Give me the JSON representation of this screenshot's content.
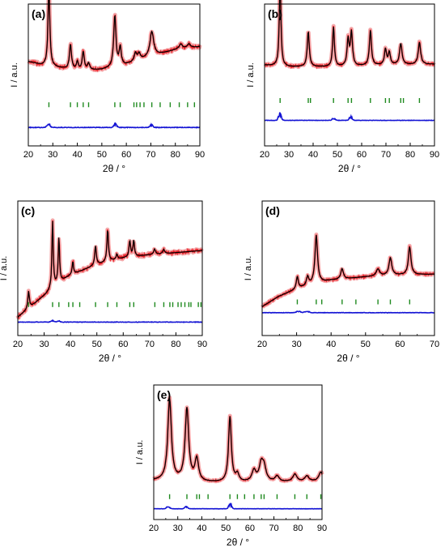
{
  "colors": {
    "observed": "#e8222a",
    "observed_band": "#f4a6a8",
    "calculated": "#000000",
    "difference": "#1414d4",
    "reflections": "#1f8a1f"
  },
  "chart_data": [
    {
      "panel_label": "(a)",
      "type": "line",
      "xlabel": "2θ / °",
      "ylabel": "I / a.u.",
      "xlim": [
        20,
        90
      ],
      "xticks": [
        "20",
        "30",
        "40",
        "50",
        "60",
        "70",
        "80",
        "90"
      ],
      "baseline": {
        "x": [
          20,
          26,
          40,
          50,
          60,
          70,
          80,
          90
        ],
        "y": [
          0.44,
          0.39,
          0.33,
          0.34,
          0.4,
          0.5,
          0.58,
          0.62
        ]
      },
      "peaks": [
        {
          "x": 28.4,
          "h": 0.95,
          "w": 0.45
        },
        {
          "x": 37.2,
          "h": 0.3,
          "w": 0.5
        },
        {
          "x": 40.0,
          "h": 0.1,
          "w": 0.5
        },
        {
          "x": 42.4,
          "h": 0.22,
          "w": 0.5
        },
        {
          "x": 44.6,
          "h": 0.08,
          "w": 0.5
        },
        {
          "x": 55.3,
          "h": 0.62,
          "w": 0.55
        },
        {
          "x": 57.5,
          "h": 0.22,
          "w": 0.5
        },
        {
          "x": 63.7,
          "h": 0.1,
          "w": 0.6
        },
        {
          "x": 65.2,
          "h": 0.08,
          "w": 0.6
        },
        {
          "x": 70.4,
          "h": 0.3,
          "w": 0.9
        },
        {
          "x": 82.2,
          "h": 0.06,
          "w": 0.8
        },
        {
          "x": 85.5,
          "h": 0.05,
          "w": 0.8
        }
      ],
      "reflections": [
        28.4,
        37.2,
        40.0,
        42.4,
        44.6,
        55.3,
        57.5,
        63.1,
        64.2,
        65.6,
        67.2,
        70.4,
        73.8,
        77.9,
        81.6,
        85.0,
        87.8
      ],
      "noise": 0.018,
      "diff_features": [
        {
          "x": 28.2,
          "h": 0.3
        },
        {
          "x": 55.5,
          "h": 0.25
        },
        {
          "x": 70.2,
          "h": 0.18
        }
      ]
    },
    {
      "panel_label": "(b)",
      "type": "line",
      "xlabel": "2θ / °",
      "ylabel": "I / a.u.",
      "xlim": [
        20,
        90
      ],
      "xticks": [
        "20",
        "30",
        "40",
        "50",
        "60",
        "70",
        "80",
        "90"
      ],
      "baseline": {
        "x": [
          20,
          30,
          50,
          70,
          90
        ],
        "y": [
          0.37,
          0.35,
          0.35,
          0.37,
          0.38
        ]
      },
      "peaks": [
        {
          "x": 26.4,
          "h": 1.0,
          "w": 0.4
        },
        {
          "x": 38.0,
          "h": 0.4,
          "w": 0.5
        },
        {
          "x": 48.4,
          "h": 0.45,
          "w": 0.45
        },
        {
          "x": 54.4,
          "h": 0.3,
          "w": 0.5
        },
        {
          "x": 55.8,
          "h": 0.38,
          "w": 0.5
        },
        {
          "x": 63.6,
          "h": 0.4,
          "w": 0.5
        },
        {
          "x": 69.8,
          "h": 0.18,
          "w": 0.5
        },
        {
          "x": 71.4,
          "h": 0.14,
          "w": 0.5
        },
        {
          "x": 76.1,
          "h": 0.24,
          "w": 0.6
        },
        {
          "x": 83.8,
          "h": 0.25,
          "w": 0.6
        }
      ],
      "reflections": [
        26.4,
        38.0,
        38.9,
        48.4,
        54.4,
        55.8,
        63.6,
        69.8,
        71.4,
        76.1,
        77.2,
        83.8
      ],
      "noise": 0.012,
      "diff_features": [
        {
          "x": 26.3,
          "h": 0.45
        },
        {
          "x": 48.5,
          "h": 0.15
        },
        {
          "x": 55.5,
          "h": 0.25
        }
      ]
    },
    {
      "panel_label": "(c)",
      "type": "line",
      "xlabel": "2θ / °",
      "ylabel": "I / a.u.",
      "xlim": [
        20,
        90
      ],
      "xticks": [
        "20",
        "30",
        "40",
        "50",
        "60",
        "70",
        "80",
        "90"
      ],
      "baseline": {
        "x": [
          20,
          25,
          30,
          35,
          40,
          50,
          60,
          70,
          80,
          90
        ],
        "y": [
          0.02,
          0.12,
          0.22,
          0.33,
          0.41,
          0.51,
          0.57,
          0.6,
          0.62,
          0.64
        ]
      },
      "peaks": [
        {
          "x": 24.1,
          "h": 0.16,
          "w": 0.35
        },
        {
          "x": 33.2,
          "h": 0.62,
          "w": 0.3
        },
        {
          "x": 35.6,
          "h": 0.42,
          "w": 0.3
        },
        {
          "x": 40.9,
          "h": 0.12,
          "w": 0.3
        },
        {
          "x": 49.5,
          "h": 0.18,
          "w": 0.35
        },
        {
          "x": 54.1,
          "h": 0.3,
          "w": 0.35
        },
        {
          "x": 57.6,
          "h": 0.05,
          "w": 0.35
        },
        {
          "x": 62.5,
          "h": 0.15,
          "w": 0.35
        },
        {
          "x": 64.0,
          "h": 0.15,
          "w": 0.35
        },
        {
          "x": 71.9,
          "h": 0.05,
          "w": 0.4
        },
        {
          "x": 75.4,
          "h": 0.04,
          "w": 0.4
        }
      ],
      "reflections": [
        24.1,
        33.2,
        35.6,
        39.3,
        40.9,
        43.5,
        49.5,
        54.1,
        57.6,
        62.5,
        64.0,
        72.0,
        75.4,
        77.7,
        78.8,
        80.8,
        82.0,
        83.4,
        84.9,
        85.7,
        88.5,
        89.5
      ],
      "noise": 0.016,
      "diff_features": [
        {
          "x": 33.2,
          "h": 0.1
        },
        {
          "x": 35.6,
          "h": 0.08
        }
      ]
    },
    {
      "panel_label": "(d)",
      "type": "line",
      "xlabel": "2θ / °",
      "ylabel": "I / a.u.",
      "xlim": [
        20,
        70
      ],
      "xticks": [
        "20",
        "30",
        "40",
        "50",
        "60",
        "70"
      ],
      "baseline": {
        "x": [
          20,
          25,
          30,
          35,
          40,
          50,
          60,
          70
        ],
        "y": [
          0.1,
          0.22,
          0.3,
          0.36,
          0.4,
          0.44,
          0.46,
          0.47
        ]
      },
      "peaks": [
        {
          "x": 30.2,
          "h": 0.14,
          "w": 0.35
        },
        {
          "x": 33.2,
          "h": 0.1,
          "w": 0.4
        },
        {
          "x": 35.7,
          "h": 0.55,
          "w": 0.45
        },
        {
          "x": 43.2,
          "h": 0.12,
          "w": 0.45
        },
        {
          "x": 53.6,
          "h": 0.08,
          "w": 0.6
        },
        {
          "x": 57.2,
          "h": 0.2,
          "w": 0.5
        },
        {
          "x": 62.8,
          "h": 0.32,
          "w": 0.45
        }
      ],
      "reflections": [
        30.2,
        35.7,
        37.3,
        43.2,
        47.2,
        53.6,
        57.2,
        62.8
      ],
      "noise": 0.012,
      "diff_features": [
        {
          "x": 33.0,
          "h": 0.12
        },
        {
          "x": 30.5,
          "h": 0.1
        }
      ]
    },
    {
      "panel_label": "(e)",
      "type": "line",
      "xlabel": "2θ / °",
      "ylabel": "I / a.u.",
      "xlim": [
        20,
        90
      ],
      "xticks": [
        "20",
        "30",
        "40",
        "50",
        "60",
        "70",
        "80",
        "90"
      ],
      "baseline": {
        "x": [
          20,
          40,
          60,
          90
        ],
        "y": [
          0.1,
          0.08,
          0.08,
          0.09
        ]
      },
      "peaks": [
        {
          "x": 26.6,
          "h": 0.88,
          "w": 0.9
        },
        {
          "x": 33.8,
          "h": 0.78,
          "w": 0.9
        },
        {
          "x": 37.9,
          "h": 0.24,
          "w": 0.9
        },
        {
          "x": 51.7,
          "h": 0.7,
          "w": 0.7
        },
        {
          "x": 54.8,
          "h": 0.08,
          "w": 0.8
        },
        {
          "x": 61.7,
          "h": 0.12,
          "w": 1.0
        },
        {
          "x": 64.7,
          "h": 0.18,
          "w": 1.0
        },
        {
          "x": 65.9,
          "h": 0.14,
          "w": 1.0
        },
        {
          "x": 71.3,
          "h": 0.06,
          "w": 1.0
        },
        {
          "x": 78.7,
          "h": 0.08,
          "w": 1.0
        },
        {
          "x": 83.7,
          "h": 0.06,
          "w": 1.0
        },
        {
          "x": 89.5,
          "h": 0.1,
          "w": 1.0
        }
      ],
      "reflections": [
        26.6,
        33.8,
        37.9,
        39.0,
        42.6,
        51.7,
        54.8,
        57.8,
        61.7,
        64.7,
        65.9,
        71.3,
        78.7,
        83.7,
        89.5
      ],
      "noise": 0.008,
      "diff_features": [
        {
          "x": 26.0,
          "h": 0.2
        },
        {
          "x": 33.5,
          "h": 0.15
        },
        {
          "x": 51.8,
          "h": 0.35
        }
      ]
    }
  ]
}
